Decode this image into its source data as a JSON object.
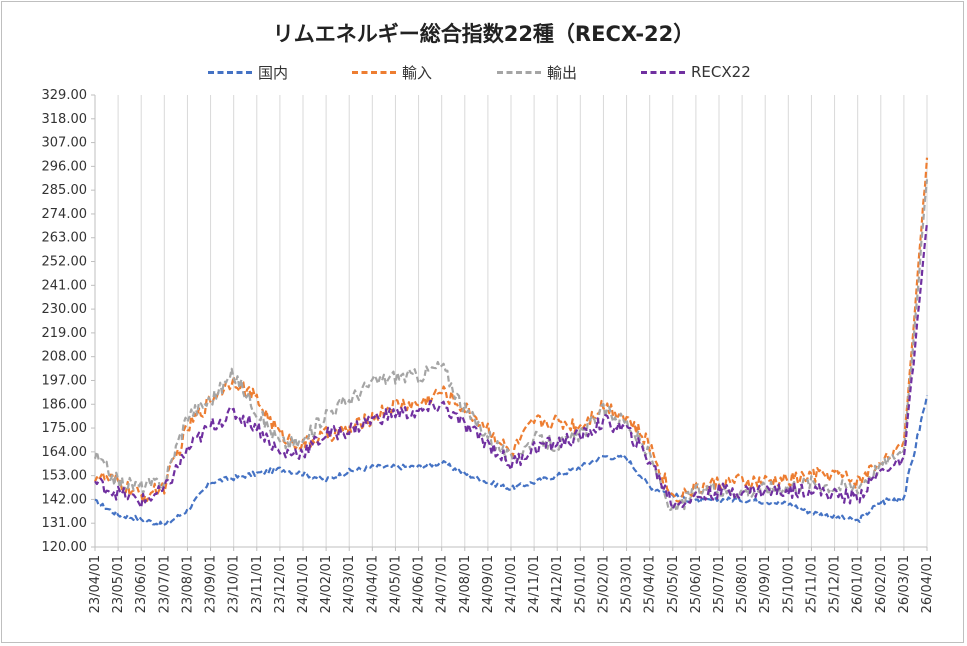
{
  "chart_data": {
    "type": "line",
    "title": "リムエネルギー総合指数22種（RECX-22）",
    "xlabel": "",
    "ylabel": "",
    "ylim": [
      120,
      329
    ],
    "yticks": [
      "120.00",
      "131.00",
      "142.00",
      "153.00",
      "164.00",
      "175.00",
      "186.00",
      "197.00",
      "208.00",
      "219.00",
      "230.00",
      "241.00",
      "252.00",
      "263.00",
      "274.00",
      "285.00",
      "296.00",
      "307.00",
      "318.00",
      "329.00"
    ],
    "xticks": [
      "23/04/01",
      "23/05/01",
      "23/06/01",
      "23/07/01",
      "23/08/01",
      "23/09/01",
      "23/10/01",
      "23/11/01",
      "23/12/01",
      "24/01/01",
      "24/02/01",
      "24/03/01",
      "24/04/01",
      "24/05/01",
      "24/06/01",
      "24/07/01",
      "24/08/01",
      "24/09/01",
      "24/10/01",
      "24/11/01",
      "24/12/01",
      "25/01/01",
      "25/02/01",
      "25/03/01",
      "25/04/01",
      "25/05/01",
      "25/06/01",
      "25/07/01",
      "25/08/01",
      "25/09/01",
      "25/10/01",
      "25/11/01",
      "25/12/01",
      "26/01/01",
      "26/02/01",
      "26/03/01",
      "26/04/01"
    ],
    "legend_position": "top",
    "grid": "vertical",
    "x_points": [
      "23/04",
      "23/05",
      "23/06",
      "23/07",
      "23/08",
      "23/09",
      "23/10",
      "23/11",
      "23/12",
      "24/01",
      "24/02",
      "24/03",
      "24/04",
      "24/05",
      "24/06",
      "24/07",
      "24/08",
      "24/09",
      "24/10",
      "24/11",
      "24/12",
      "25/01",
      "25/02",
      "25/03",
      "25/04",
      "25/05",
      "25/06",
      "25/07",
      "25/08",
      "25/09",
      "25/10",
      "25/11",
      "25/12",
      "26/01",
      "26/02",
      "26/03",
      "26/04"
    ],
    "series": [
      {
        "name": "国内",
        "color": "#4472c4",
        "values": [
          141,
          135,
          133,
          130,
          137,
          150,
          152,
          154,
          156,
          154,
          151,
          155,
          157,
          157,
          157,
          159,
          154,
          150,
          147,
          150,
          153,
          157,
          162,
          161,
          148,
          144,
          141,
          142,
          142,
          141,
          140,
          136,
          134,
          132,
          141,
          143,
          190
        ]
      },
      {
        "name": "輸入",
        "color": "#ed7d31",
        "values": [
          153,
          150,
          143,
          148,
          175,
          188,
          198,
          188,
          172,
          167,
          172,
          174,
          180,
          186,
          186,
          192,
          184,
          175,
          163,
          178,
          178,
          176,
          186,
          180,
          167,
          143,
          147,
          150,
          150,
          150,
          151,
          153,
          154,
          150,
          160,
          167,
          300
        ]
      },
      {
        "name": "輸出",
        "color": "#a5a5a5",
        "values": [
          162,
          150,
          148,
          150,
          181,
          188,
          200,
          183,
          168,
          168,
          182,
          188,
          196,
          199,
          199,
          204,
          183,
          172,
          160,
          170,
          167,
          172,
          183,
          178,
          162,
          136,
          146,
          146,
          146,
          147,
          148,
          150,
          148,
          148,
          158,
          165,
          290
        ]
      },
      {
        "name": "RECX22",
        "color": "#7030a0",
        "values": [
          150,
          145,
          141,
          146,
          165,
          176,
          182,
          176,
          163,
          164,
          172,
          174,
          179,
          182,
          182,
          186,
          176,
          168,
          158,
          166,
          168,
          171,
          178,
          174,
          160,
          140,
          143,
          146,
          146,
          146,
          146,
          147,
          144,
          143,
          155,
          160,
          270
        ]
      }
    ]
  }
}
